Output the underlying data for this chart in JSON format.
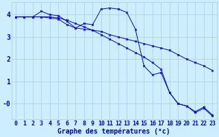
{
  "background_color": "#cceeff",
  "grid_color": "#aacccc",
  "line_color": "#0000cc",
  "xlabel": "Graphe des températures (°c)",
  "xlabel_fontsize": 7,
  "tick_fontsize": 6,
  "xlim": [
    -0.5,
    23.5
  ],
  "ylim": [
    -0.7,
    4.55
  ],
  "yticks": [
    0,
    1,
    2,
    3,
    4
  ],
  "ytick_labels": [
    "-0",
    "1",
    "2",
    "3",
    "4"
  ],
  "xticks": [
    0,
    1,
    2,
    3,
    4,
    5,
    6,
    7,
    8,
    9,
    10,
    11,
    12,
    13,
    14,
    15,
    16,
    17,
    18,
    19,
    20,
    21,
    22,
    23
  ],
  "series1_x": [
    0,
    1,
    2,
    3,
    4,
    5,
    6,
    7,
    8,
    9,
    10,
    11,
    12,
    13,
    14,
    15,
    16,
    17,
    18,
    19,
    20,
    21,
    22,
    23
  ],
  "series1_y": [
    3.9,
    3.9,
    3.9,
    3.9,
    3.9,
    3.85,
    3.75,
    3.6,
    3.45,
    3.3,
    3.1,
    2.9,
    2.7,
    2.5,
    2.3,
    2.1,
    1.85,
    1.55,
    0.5,
    0.0,
    -0.1,
    -0.35,
    -0.15,
    -0.5
  ],
  "series2_x": [
    0,
    1,
    2,
    3,
    4,
    5,
    6,
    7,
    8,
    9,
    10,
    11,
    12,
    13,
    14,
    15,
    16,
    17,
    18,
    19,
    20,
    21,
    22,
    23
  ],
  "series2_y": [
    3.9,
    3.9,
    3.9,
    4.15,
    4.0,
    3.95,
    3.7,
    3.4,
    3.6,
    3.55,
    4.25,
    4.3,
    4.25,
    4.1,
    3.35,
    1.7,
    1.3,
    1.4,
    0.5,
    0.0,
    -0.1,
    -0.4,
    -0.2,
    -0.55
  ],
  "series3_x": [
    0,
    1,
    2,
    3,
    4,
    5,
    6,
    7,
    8,
    9,
    10,
    11,
    12,
    13,
    14,
    15,
    16,
    17,
    18,
    19,
    20,
    21,
    22,
    23
  ],
  "series3_y": [
    3.9,
    3.9,
    3.9,
    3.9,
    3.85,
    3.8,
    3.55,
    3.4,
    3.35,
    3.3,
    3.25,
    3.1,
    3.0,
    2.9,
    2.8,
    2.7,
    2.6,
    2.5,
    2.4,
    2.2,
    2.0,
    1.85,
    1.7,
    1.5
  ]
}
